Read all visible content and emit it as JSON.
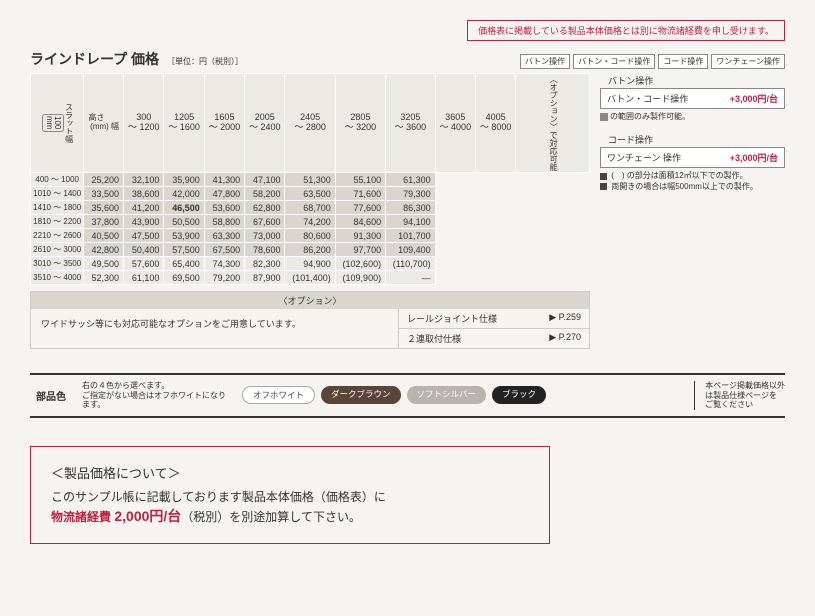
{
  "notice": "価格表に掲載している製品本体価格とは別に物流諸経費を申し受けます。",
  "title": "ラインドレープ 価格",
  "unit": "［単位：円（税別）］",
  "op_tags": [
    "バトン操作",
    "バトン・コード操作",
    "コード操作",
    "ワンチェーン操作"
  ],
  "corner": {
    "height": "高さ",
    "width": "幅",
    "mm": "(mm)"
  },
  "col_headers": [
    {
      "t": "300",
      "b": "～ 1200"
    },
    {
      "t": "1205",
      "b": "～ 1600"
    },
    {
      "t": "1605",
      "b": "～ 2000"
    },
    {
      "t": "2005",
      "b": "～ 2400"
    },
    {
      "t": "2405",
      "b": "～ 2800"
    },
    {
      "t": "2805",
      "b": "～ 3200"
    },
    {
      "t": "3205",
      "b": "～ 3600"
    },
    {
      "t": "3605",
      "b": "～ 4000"
    },
    {
      "t": "4005",
      "b": "～ 8000"
    }
  ],
  "side_label": "スラット幅",
  "slat": "100\nmm",
  "opt_tail": "〈オプション〉で対応可能",
  "rows": [
    {
      "h": "400 ～ 1000",
      "v": [
        "25,200",
        "32,100",
        "35,900",
        "41,300",
        "47,100",
        "51,300",
        "55,100",
        "61,300",
        ""
      ]
    },
    {
      "h": "1010 ～ 1400",
      "v": [
        "33,500",
        "38,600",
        "42,000",
        "47,800",
        "58,200",
        "63,500",
        "71,600",
        "79,300",
        ""
      ]
    },
    {
      "h": "1410 ～ 1800",
      "v": [
        "35,600",
        "41,200",
        "46,500",
        "53,600",
        "62,800",
        "68,700",
        "77,600",
        "86,300",
        ""
      ]
    },
    {
      "h": "1810 ～ 2200",
      "v": [
        "37,800",
        "43,900",
        "50,500",
        "58,800",
        "67,600",
        "74,200",
        "84,600",
        "94,100",
        ""
      ]
    },
    {
      "h": "2210 ～ 2600",
      "v": [
        "40,500",
        "47,500",
        "53,900",
        "63,300",
        "73,000",
        "80,600",
        "91,300",
        "101,700",
        ""
      ]
    },
    {
      "h": "2610 ～ 3000",
      "v": [
        "42,800",
        "50,400",
        "57,500",
        "67,500",
        "78,600",
        "86,200",
        "97,700",
        "109,400",
        ""
      ]
    },
    {
      "h": "3010 ～ 3500",
      "v": [
        "49,500",
        "57,600",
        "65,400",
        "74,300",
        "82,300",
        "94,900",
        "(102,600)",
        "(110,700)",
        ""
      ]
    },
    {
      "h": "3510 ～ 4000",
      "v": [
        "52,300",
        "61,100",
        "69,500",
        "79,200",
        "87,900",
        "(101,400)",
        "(109,900)",
        "—",
        ""
      ]
    }
  ],
  "bold_cell": {
    "row": 2,
    "col": 2
  },
  "option": {
    "header": "〈オプション〉",
    "text": "ワイドサッシ等にも対応可能なオプションをご用意しています。",
    "items": [
      {
        "label": "レールジョイント仕様",
        "page": "▶ P.259"
      },
      {
        "label": "２連取付仕様",
        "page": "▶ P.270"
      }
    ]
  },
  "side": {
    "baton": {
      "title": "バトン操作",
      "row": "バトン・コード操作",
      "price": "+3,000円/台",
      "note": "の範囲のみ製作可能。"
    },
    "code": {
      "title": "コード操作",
      "row": "ワンチェーン 操作",
      "price": "+3,000円/台",
      "notes": [
        "(　) の部分は面積12㎡以下での製作。",
        "両開きの場合は幅500mm以上での製作。"
      ]
    }
  },
  "parts": {
    "label": "部品色",
    "desc1": "右の４色から選べます。",
    "desc2": "ご指定がない場合はオフホワイトになります。",
    "chips": [
      "オフホワイト",
      "ダークブラウン",
      "ソフトシルバー",
      "ブラック"
    ],
    "tail": "本ページ掲載価格以外\nは製品仕様ページを\nご覧ください"
  },
  "bottom": {
    "h": "＜製品価格について＞",
    "l1a": "このサンプル帳に記載しております製品本体価格（価格表）に",
    "l2a": "物流諸経費",
    "l2b": "2,000円/台",
    "l2c": "（税別）を別途加算して下さい。"
  }
}
